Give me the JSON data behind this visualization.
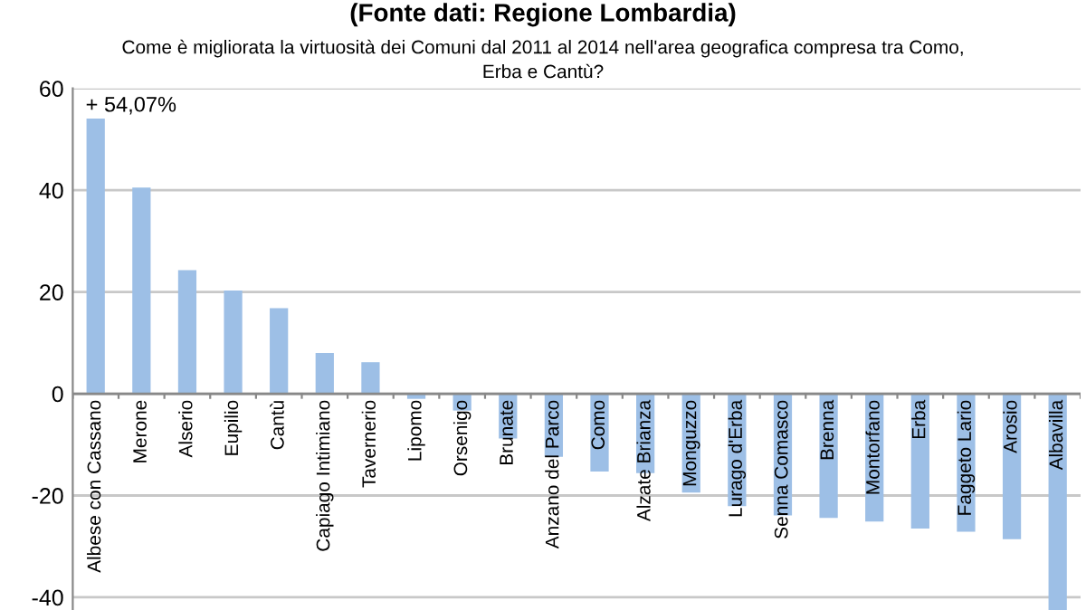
{
  "chart_data": {
    "type": "bar",
    "title": "(Fonte dati: Regione Lombardia)",
    "subtitle": "Come è migliorata la virtuosità dei Comuni dal 2011 al 2014 nell'area geografica compresa tra Como,\nErba e Cantù?",
    "categories": [
      "Albese con Cassano",
      "Merone",
      "Alserio",
      "Eupilio",
      "Cantù",
      "Capiago Intimiano",
      "Tavernerio",
      "Lipomo",
      "Orsenigo",
      "Brunate",
      "Anzano del Parco",
      "Como",
      "Alzate Brianza",
      "Monguzzo",
      "Lurago d'Erba",
      "Senna Comasco",
      "Brenna",
      "Montorfano",
      "Erba",
      "Faggeto Lario",
      "Arosio",
      "Albavilla"
    ],
    "values": [
      54.07,
      40.5,
      24.3,
      20.3,
      16.8,
      8.0,
      6.2,
      -1.0,
      -3.3,
      -8.8,
      -12.4,
      -15.3,
      -15.6,
      -19.4,
      -22.1,
      -23.9,
      -24.4,
      -25.1,
      -26.5,
      -27.1,
      -28.6,
      -42.5
    ],
    "color": "#9dbfe6",
    "ylim": [
      -42.5,
      60
    ],
    "yticks": [
      -40,
      -20,
      0,
      20,
      40,
      60
    ],
    "grid": "y",
    "legend": false,
    "annotations": [
      {
        "text": "+ 54,07%",
        "x": "Albese con Cassano",
        "y": 54.07
      }
    ]
  }
}
